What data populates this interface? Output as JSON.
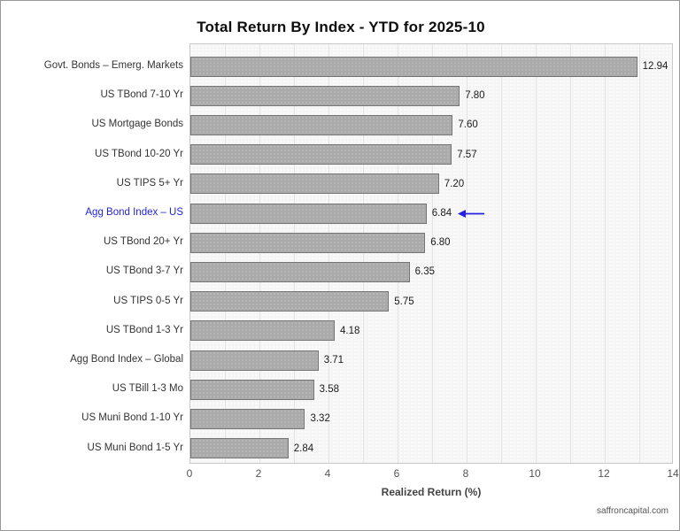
{
  "figure": {
    "title": "Total Return By Index - YTD for 2025-10",
    "watermark": "saffroncapital.com"
  },
  "chart_data": {
    "type": "bar",
    "orientation": "horizontal",
    "title": "Total Return By Index - YTD for 2025-10",
    "categories": [
      "Govt. Bonds – Emerg. Markets",
      "US TBond 7-10 Yr",
      "US Mortgage Bonds",
      "US TBond 10-20 Yr",
      "US TIPS 5+ Yr",
      "Agg Bond Index – US",
      "US TBond 20+ Yr",
      "US TBond 3-7 Yr",
      "US TIPS 0-5 Yr",
      "US TBond 1-3 Yr",
      "Agg Bond Index – Global",
      "US TBill 1-3 Mo",
      "US Muni Bond 1-10 Yr",
      "US Muni Bond 1-5 Yr"
    ],
    "values": [
      12.94,
      7.8,
      7.6,
      7.57,
      7.2,
      6.84,
      6.8,
      6.35,
      5.75,
      4.18,
      3.71,
      3.58,
      3.32,
      2.84
    ],
    "value_labels": [
      "12.94",
      "7.80",
      "7.60",
      "7.57",
      "7.20",
      "6.84",
      "6.80",
      "6.35",
      "5.75",
      "4.18",
      "3.71",
      "3.58",
      "3.32",
      "2.84"
    ],
    "xlabel": "Realized Return (%)",
    "xlim": [
      0,
      14
    ],
    "xticks": [
      0,
      2,
      4,
      6,
      8,
      10,
      12,
      14
    ],
    "grid": "vertical-minor-every-1",
    "legend": "none",
    "highlight": {
      "index": 5,
      "label": "Agg Bond Index – US",
      "arrow": true,
      "color": "#2323dd"
    },
    "colors": {
      "bar_fill": "#aaaaaa",
      "bar_border": "#757575",
      "accent_blue": "#2323dd"
    }
  }
}
